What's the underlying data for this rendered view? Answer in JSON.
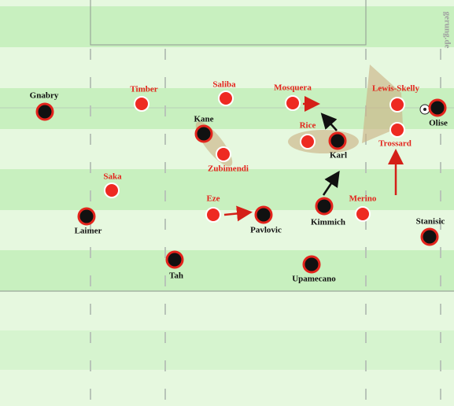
{
  "watermark": "gerung.de",
  "red_players": [
    "Timber",
    "Saliba",
    "Mosquera",
    "Lewis-Skelly",
    "Rice",
    "Trossard",
    "Zubimendi",
    "Saka",
    "Eze",
    "Merino"
  ],
  "black_players": [
    "Gnabry",
    "Olise",
    "Kane",
    "Karl",
    "Kimmich",
    "Pavlovic",
    "Laimer",
    "Stanisic",
    "Tah",
    "Upamecano"
  ]
}
